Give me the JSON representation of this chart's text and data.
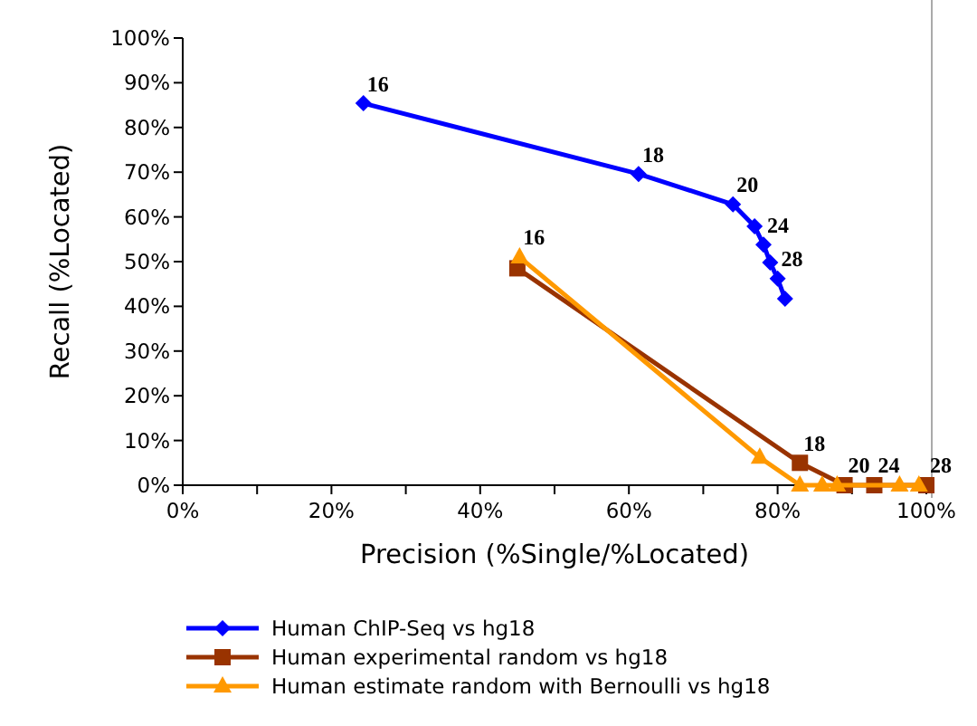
{
  "chart_data": {
    "type": "line",
    "xlabel": "Precision (%Single/%Located)",
    "ylabel": "Recall (%Located)",
    "xlim": [
      0,
      100
    ],
    "ylim": [
      0,
      100
    ],
    "xticks": [
      {
        "value": 0,
        "label": "0%"
      },
      {
        "value": 20,
        "label": "20%"
      },
      {
        "value": 40,
        "label": "40%"
      },
      {
        "value": 60,
        "label": "60%"
      },
      {
        "value": 80,
        "label": "80%"
      },
      {
        "value": 100,
        "label": "100%"
      }
    ],
    "yticks": [
      {
        "value": 0,
        "label": "0%"
      },
      {
        "value": 10,
        "label": "10%"
      },
      {
        "value": 20,
        "label": "20%"
      },
      {
        "value": 30,
        "label": "30%"
      },
      {
        "value": 40,
        "label": "40%"
      },
      {
        "value": 50,
        "label": "50%"
      },
      {
        "value": 60,
        "label": "60%"
      },
      {
        "value": 70,
        "label": "70%"
      },
      {
        "value": 80,
        "label": "80%"
      },
      {
        "value": 90,
        "label": "90%"
      },
      {
        "value": 100,
        "label": "100%"
      }
    ],
    "grid": false,
    "legend": "bottom",
    "series": [
      {
        "name": "Human ChIP-Seq vs hg18",
        "color": "#0000ff",
        "marker": "diamond",
        "x": [
          24.3,
          61.3,
          74,
          76.9,
          78.1,
          79,
          80,
          81
        ],
        "values": [
          85.4,
          69.6,
          62.8,
          57.9,
          53.8,
          49.8,
          46.2,
          41.7
        ]
      },
      {
        "name": "Human experimental random vs hg18",
        "color": "#993300",
        "marker": "square",
        "x": [
          45,
          83,
          89,
          93,
          100
        ],
        "values": [
          48.5,
          5,
          0,
          0,
          0
        ]
      },
      {
        "name": "Human estimate random with Bernoulli vs hg18",
        "color": "#ff9900",
        "marker": "triangle",
        "x": [
          45.3,
          77.6,
          83,
          86,
          88,
          96.4,
          99
        ],
        "values": [
          51,
          6.2,
          0,
          0,
          0,
          0,
          0
        ]
      }
    ],
    "annotations": [
      {
        "text": "16",
        "x": 24.3,
        "y": 85.4
      },
      {
        "text": "18",
        "x": 61.3,
        "y": 69.6
      },
      {
        "text": "20",
        "x": 74,
        "y": 62.8
      },
      {
        "text": "24",
        "x": 78.1,
        "y": 53.8
      },
      {
        "text": "28",
        "x": 80,
        "y": 46.2
      },
      {
        "text": "16",
        "x": 45.3,
        "y": 51
      },
      {
        "text": "18",
        "x": 83,
        "y": 5
      },
      {
        "text": "20",
        "x": 89,
        "y": 0
      },
      {
        "text": "24",
        "x": 93,
        "y": 0
      },
      {
        "text": "28",
        "x": 100,
        "y": 0
      }
    ]
  }
}
